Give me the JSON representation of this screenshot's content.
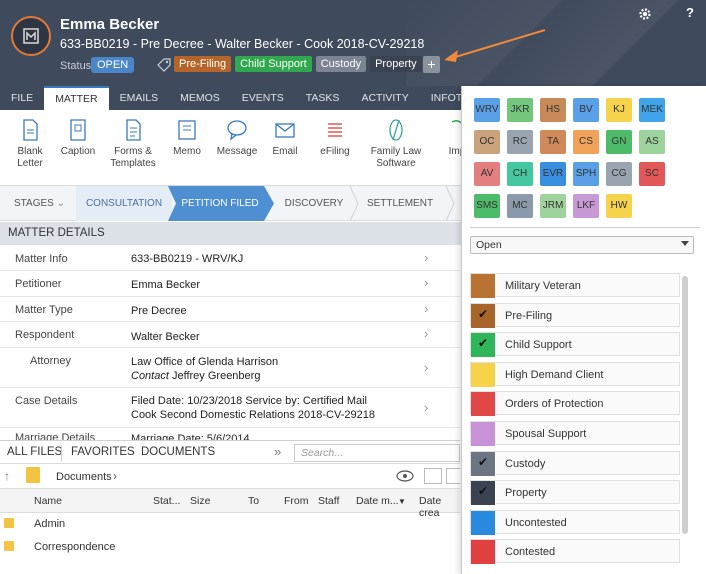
{
  "header": {
    "client_name": "Emma Becker",
    "matter_line": "633-BB0219 - Pre Decree - Walter Becker - Cook 2018-CV-29218",
    "status_label": "Status",
    "status_value": "OPEN",
    "tags": [
      {
        "label": "Pre-Filing",
        "color": "#b5652a"
      },
      {
        "label": "Child Support",
        "color": "#2fa84f"
      },
      {
        "label": "Custody",
        "color": "#7c8494"
      },
      {
        "label": "Property",
        "color": "#3b4352"
      }
    ],
    "add_tag_label": "+",
    "help_label": "?"
  },
  "tabs": [
    {
      "label": "FILE"
    },
    {
      "label": "MATTER",
      "active": true
    },
    {
      "label": "EMAILS"
    },
    {
      "label": "MEMOS"
    },
    {
      "label": "EVENTS"
    },
    {
      "label": "TASKS"
    },
    {
      "label": "ACTIVITY"
    },
    {
      "label": "INFOTRACK"
    }
  ],
  "ribbon": {
    "blank_letter": "Blank Letter",
    "caption": "Caption",
    "forms": "Forms & Templates",
    "memo": "Memo",
    "message": "Message",
    "email": "Email",
    "efiling": "eFiling",
    "family_law": "Family Law Software",
    "import_partial": "Imp"
  },
  "stages": {
    "label": "STAGES",
    "items": [
      "CONSULTATION",
      "PETITION FILED",
      "DISCOVERY",
      "SETTLEMENT"
    ]
  },
  "matter_details": {
    "title": "MATTER DETAILS",
    "rows": [
      {
        "key": "Matter Info",
        "value": "633-BB0219 - WRV/KJ"
      },
      {
        "key": "Petitioner",
        "value": "Emma Becker"
      },
      {
        "key": "Matter Type",
        "value": "Pre Decree"
      },
      {
        "key": "Respondent",
        "value": "Walter Becker"
      },
      {
        "key": "Attorney",
        "value": "Law Office of Glenda Harrison",
        "contact_label": "Contact",
        "contact_value": "Jeffrey Greenberg"
      },
      {
        "key": "Case Details",
        "value": "Filed Date: 10/23/2018  Service by: Certified Mail",
        "value2": "Cook Second Domestic Relations 2018-CV-29218"
      },
      {
        "key": "Marriage Details",
        "value": "Marriage Date: 5/6/2014"
      }
    ]
  },
  "files": {
    "tabs": [
      "ALL FILES",
      "FAVORITES",
      "DOCUMENTS"
    ],
    "search_placeholder": "Search...",
    "breadcrumb": "Documents",
    "columns": [
      "Name",
      "Stat...",
      "Size",
      "To",
      "From",
      "Staff",
      "Date m...",
      "Date crea"
    ],
    "rows": [
      {
        "name": "Admin"
      },
      {
        "name": "Correspondence"
      }
    ]
  },
  "panel": {
    "chips": [
      {
        "label": "WRV",
        "color": "#5aa0e6"
      },
      {
        "label": "JKR",
        "color": "#73c77c"
      },
      {
        "label": "HS",
        "color": "#c98a5a"
      },
      {
        "label": "BV",
        "color": "#5aa0e6"
      },
      {
        "label": "KJ",
        "color": "#f5d34d"
      },
      {
        "label": "MEK",
        "color": "#3fa4ea"
      },
      {
        "label": "OC",
        "color": "#caa37d"
      },
      {
        "label": "RC",
        "color": "#9aa3b0"
      },
      {
        "label": "TA",
        "color": "#d08a5a"
      },
      {
        "label": "CS",
        "color": "#f0a25a"
      },
      {
        "label": "GN",
        "color": "#4dbb6a"
      },
      {
        "label": "AS",
        "color": "#9ed39e"
      },
      {
        "label": "AV",
        "color": "#e47f7f"
      },
      {
        "label": "CH",
        "color": "#45c7a0"
      },
      {
        "label": "EVR",
        "color": "#3a8ee0"
      },
      {
        "label": "SPH",
        "color": "#5aa0e6"
      },
      {
        "label": "CG",
        "color": "#9aa3b0"
      },
      {
        "label": "SC",
        "color": "#e25858"
      },
      {
        "label": "SMS",
        "color": "#4dbb6a"
      },
      {
        "label": "MC",
        "color": "#8b9bac"
      },
      {
        "label": "JRM",
        "color": "#9ed39e"
      },
      {
        "label": "LKF",
        "color": "#c79ad6"
      },
      {
        "label": "HW",
        "color": "#f5d34d"
      }
    ],
    "status_select": "Open",
    "list": [
      {
        "label": "Military Veteran",
        "color": "#b87333",
        "checked": false
      },
      {
        "label": "Pre-Filing",
        "color": "#a8652a",
        "checked": true
      },
      {
        "label": "Child Support",
        "color": "#2fb55a",
        "checked": true
      },
      {
        "label": "High Demand Client",
        "color": "#f7d34a",
        "checked": false
      },
      {
        "label": "Orders of Protection",
        "color": "#e04848",
        "checked": false
      },
      {
        "label": "Spousal Support",
        "color": "#c792d6",
        "checked": false
      },
      {
        "label": "Custody",
        "color": "#6c7584",
        "checked": true
      },
      {
        "label": "Property",
        "color": "#3b4352",
        "checked": true
      },
      {
        "label": "Uncontested",
        "color": "#2a8ae0",
        "checked": false
      },
      {
        "label": "Contested",
        "color": "#e04040",
        "checked": false
      }
    ],
    "check_glyph": "✔"
  }
}
